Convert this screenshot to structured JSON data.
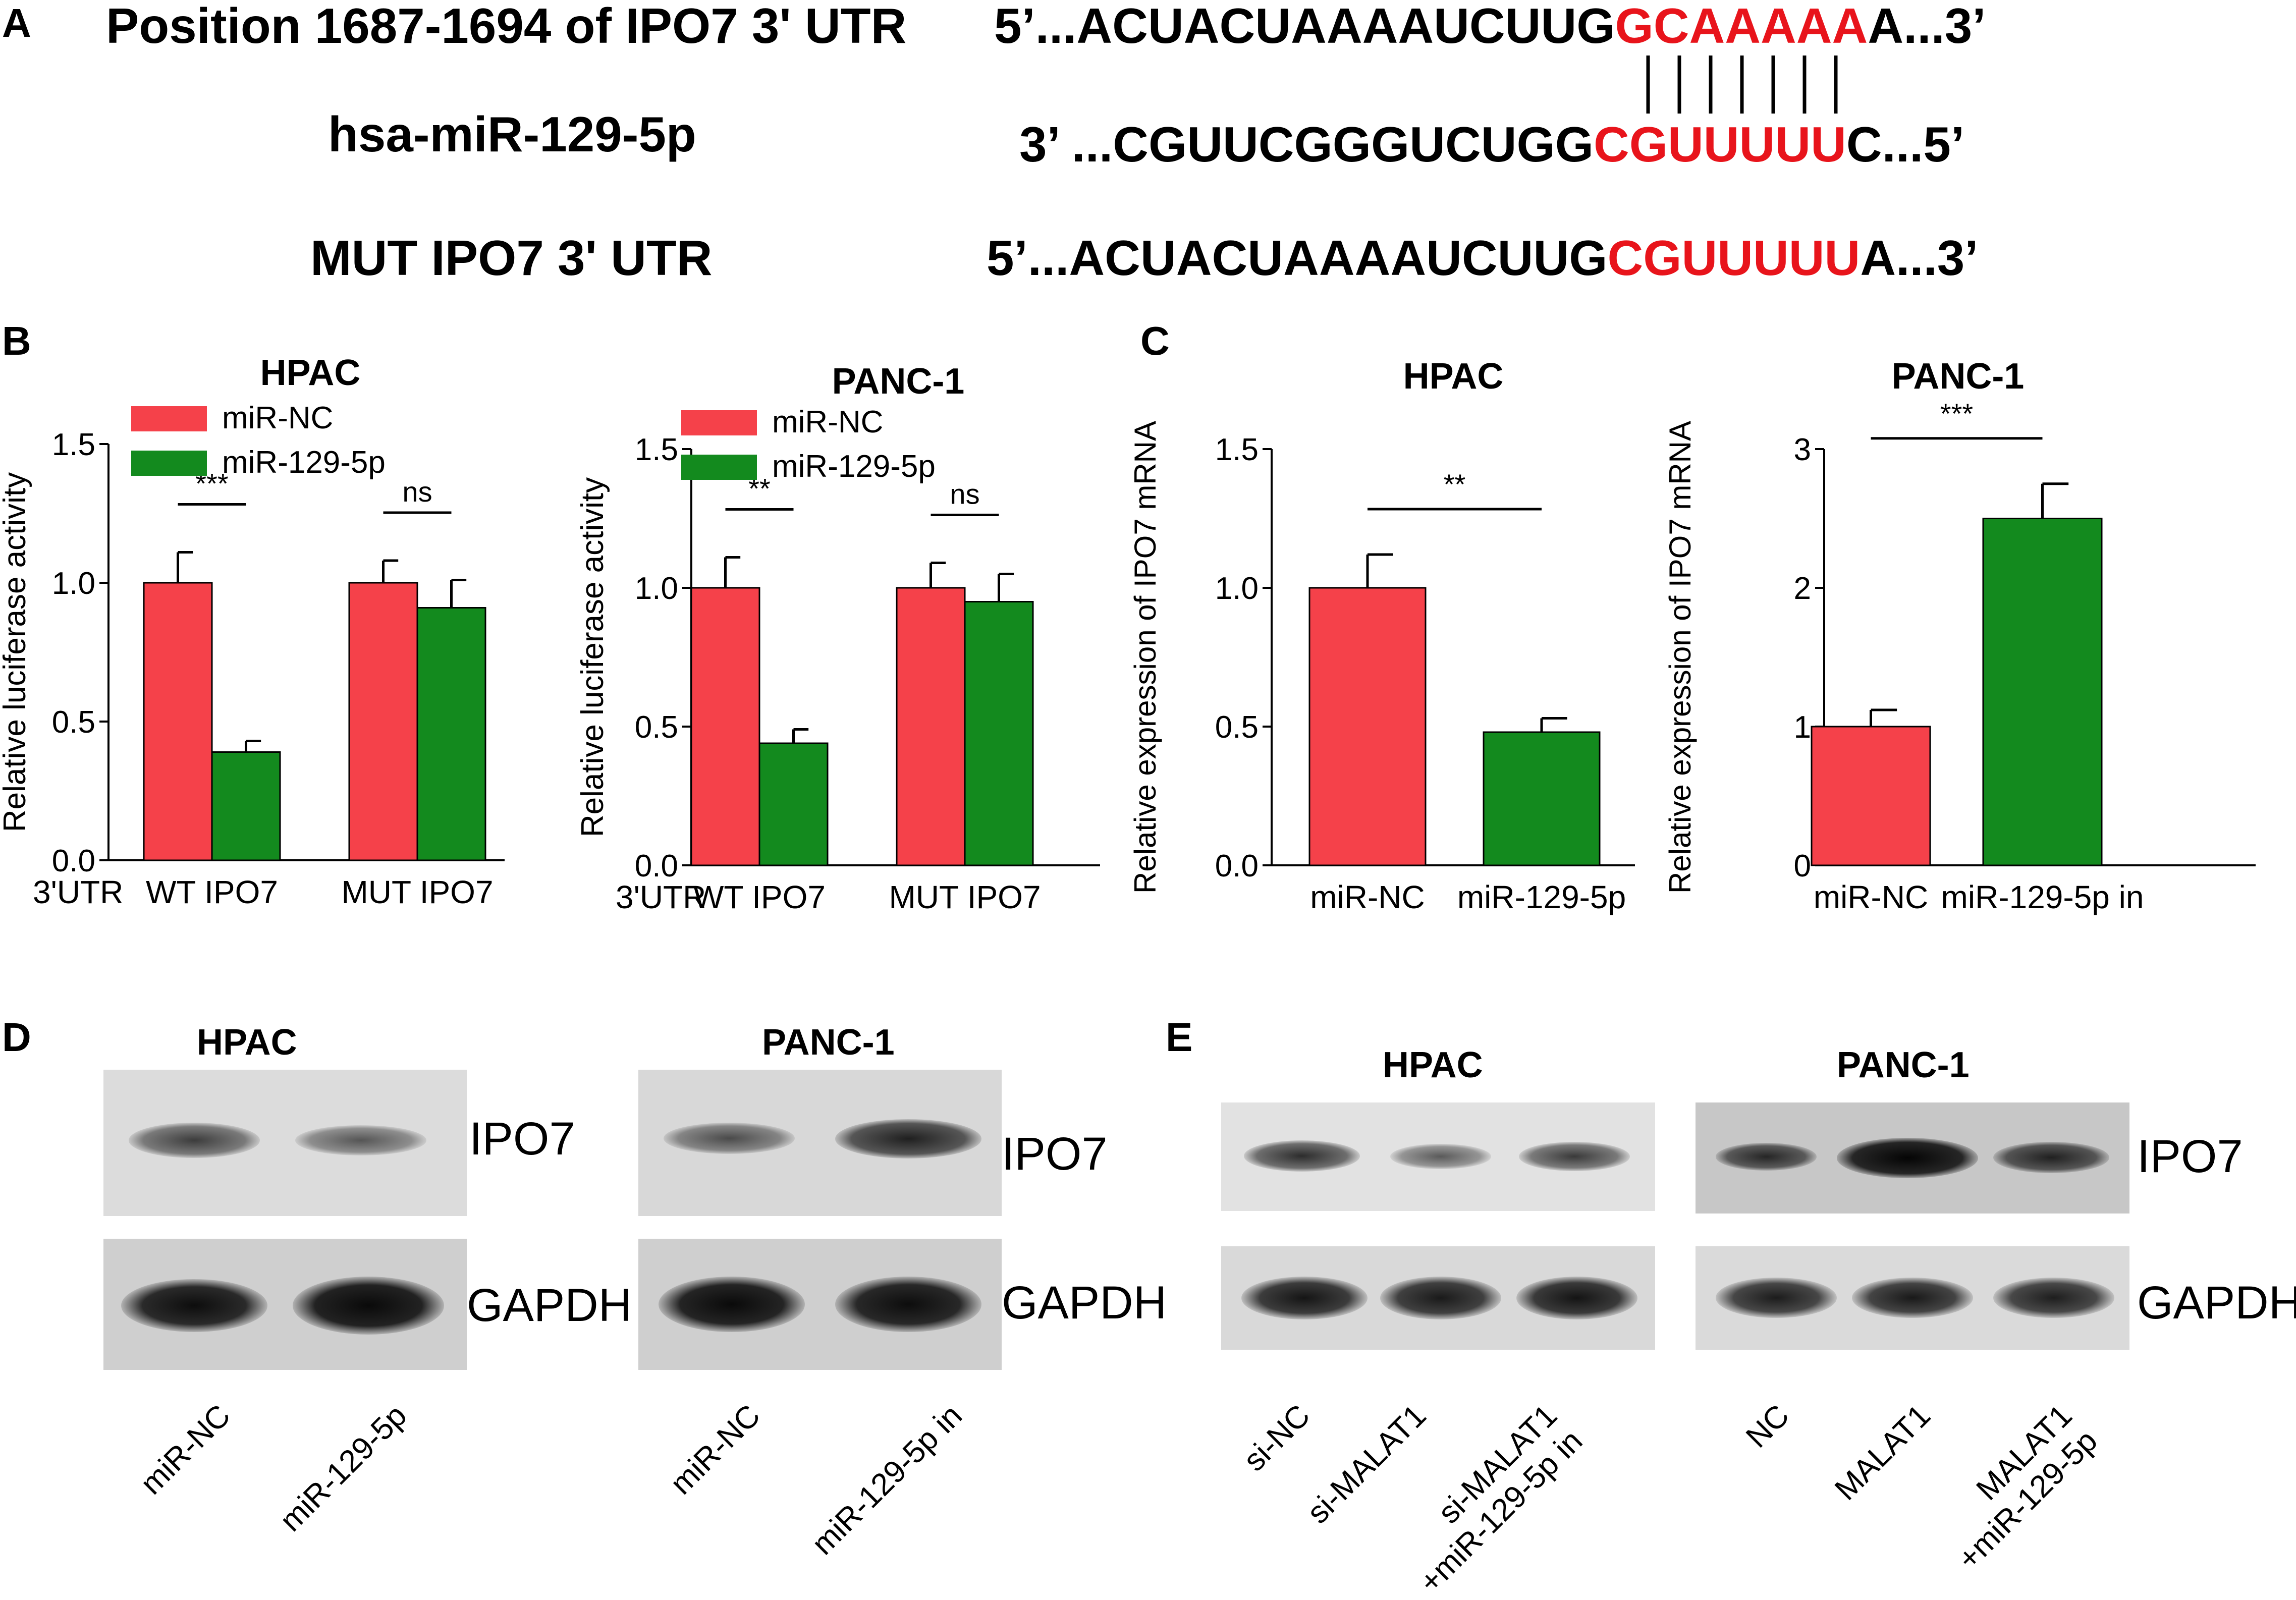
{
  "panels": {
    "A": "A",
    "B": "B",
    "C": "C",
    "D": "D",
    "E": "E"
  },
  "panel_a": {
    "rows": [
      {
        "label": "Position 1687-1694 of IPO7 3' UTR",
        "prefix": "5’...ACUACUAAAAUCUUG",
        "highlight": "GCAAAAA",
        "suffix": "A...3’"
      },
      {
        "label": "hsa-miR-129-5p",
        "prefix": "3’ ...CGUUCGGGUCUGG",
        "highlight": "CGUUUUU",
        "suffix": "C...5’"
      },
      {
        "label": "MUT IPO7 3' UTR",
        "prefix": "5’...ACUACUAAAAUCUUG",
        "highlight": "CGUUUUU",
        "suffix": "A...3’"
      }
    ]
  },
  "chart_data": [
    {
      "type": "bar",
      "title": "HPAC",
      "ylabel": "Relative luciferase activity",
      "xlabel_prefix": "3'UTR",
      "categories": [
        "WT IPO7",
        "MUT IPO7"
      ],
      "series": [
        {
          "name": "miR-NC",
          "color": "#f5414a",
          "values": [
            1.0,
            1.0
          ],
          "errors": [
            0.11,
            0.08
          ]
        },
        {
          "name": "miR-129-5p",
          "color": "#138a1e",
          "values": [
            0.39,
            0.91
          ],
          "errors": [
            0.04,
            0.1
          ]
        }
      ],
      "ylim": [
        0,
        1.5
      ],
      "yticks": [
        "0.0",
        "0.5",
        "1.0",
        "1.5"
      ],
      "significance": [
        "***",
        "ns"
      ],
      "legend": "top-left"
    },
    {
      "type": "bar",
      "title": "PANC-1",
      "ylabel": "Relative luciferase activity",
      "xlabel_prefix": "3'UTR",
      "categories": [
        "WT IPO7",
        "MUT IPO7"
      ],
      "series": [
        {
          "name": "miR-NC",
          "color": "#f5414a",
          "values": [
            1.0,
            1.0
          ],
          "errors": [
            0.11,
            0.09
          ]
        },
        {
          "name": "miR-129-5p",
          "color": "#138a1e",
          "values": [
            0.44,
            0.95
          ],
          "errors": [
            0.05,
            0.1
          ]
        }
      ],
      "ylim": [
        0,
        1.5
      ],
      "yticks": [
        "0.0",
        "0.5",
        "1.0",
        "1.5"
      ],
      "significance": [
        "**",
        "ns"
      ],
      "legend": "top-left"
    },
    {
      "type": "bar",
      "title": "HPAC",
      "ylabel": "Relative  expression of IPO7 mRNA",
      "categories": [
        "miR-NC",
        "miR-129-5p"
      ],
      "colors": [
        "#f5414a",
        "#138a1e"
      ],
      "values": [
        1.0,
        0.48
      ],
      "errors": [
        0.12,
        0.05
      ],
      "ylim": [
        0,
        1.5
      ],
      "yticks": [
        "0.0",
        "0.5",
        "1.0",
        "1.5"
      ],
      "significance": "**"
    },
    {
      "type": "bar",
      "title": "PANC-1",
      "ylabel": "Relative  expression of IPO7 mRNA",
      "categories": [
        "miR-NC",
        "miR-129-5p in"
      ],
      "colors": [
        "#f5414a",
        "#138a1e"
      ],
      "values": [
        1.0,
        2.5
      ],
      "errors": [
        0.12,
        0.25
      ],
      "ylim": [
        0,
        3
      ],
      "yticks": [
        "0",
        "1",
        "2",
        "3"
      ],
      "significance": "***"
    }
  ],
  "panel_d": {
    "groups": [
      {
        "title": "HPAC",
        "protein": "IPO7",
        "control": "GAPDH",
        "lanes": [
          "miR-NC",
          "miR-129-5p"
        ]
      },
      {
        "title": "PANC-1",
        "protein": "IPO7",
        "control": "GAPDH",
        "lanes": [
          "miR-NC",
          "miR-129-5p in"
        ]
      }
    ]
  },
  "panel_e": {
    "groups": [
      {
        "title": "HPAC",
        "lanes": [
          "si-NC",
          "si-MALAT1",
          "si-MALAT1\n+miR-129-5p in"
        ]
      },
      {
        "title": "PANC-1",
        "protein": "IPO7",
        "control": "GAPDH",
        "lanes": [
          "NC",
          "MALAT1",
          "MALAT1\n+miR-129-5p"
        ]
      }
    ]
  }
}
